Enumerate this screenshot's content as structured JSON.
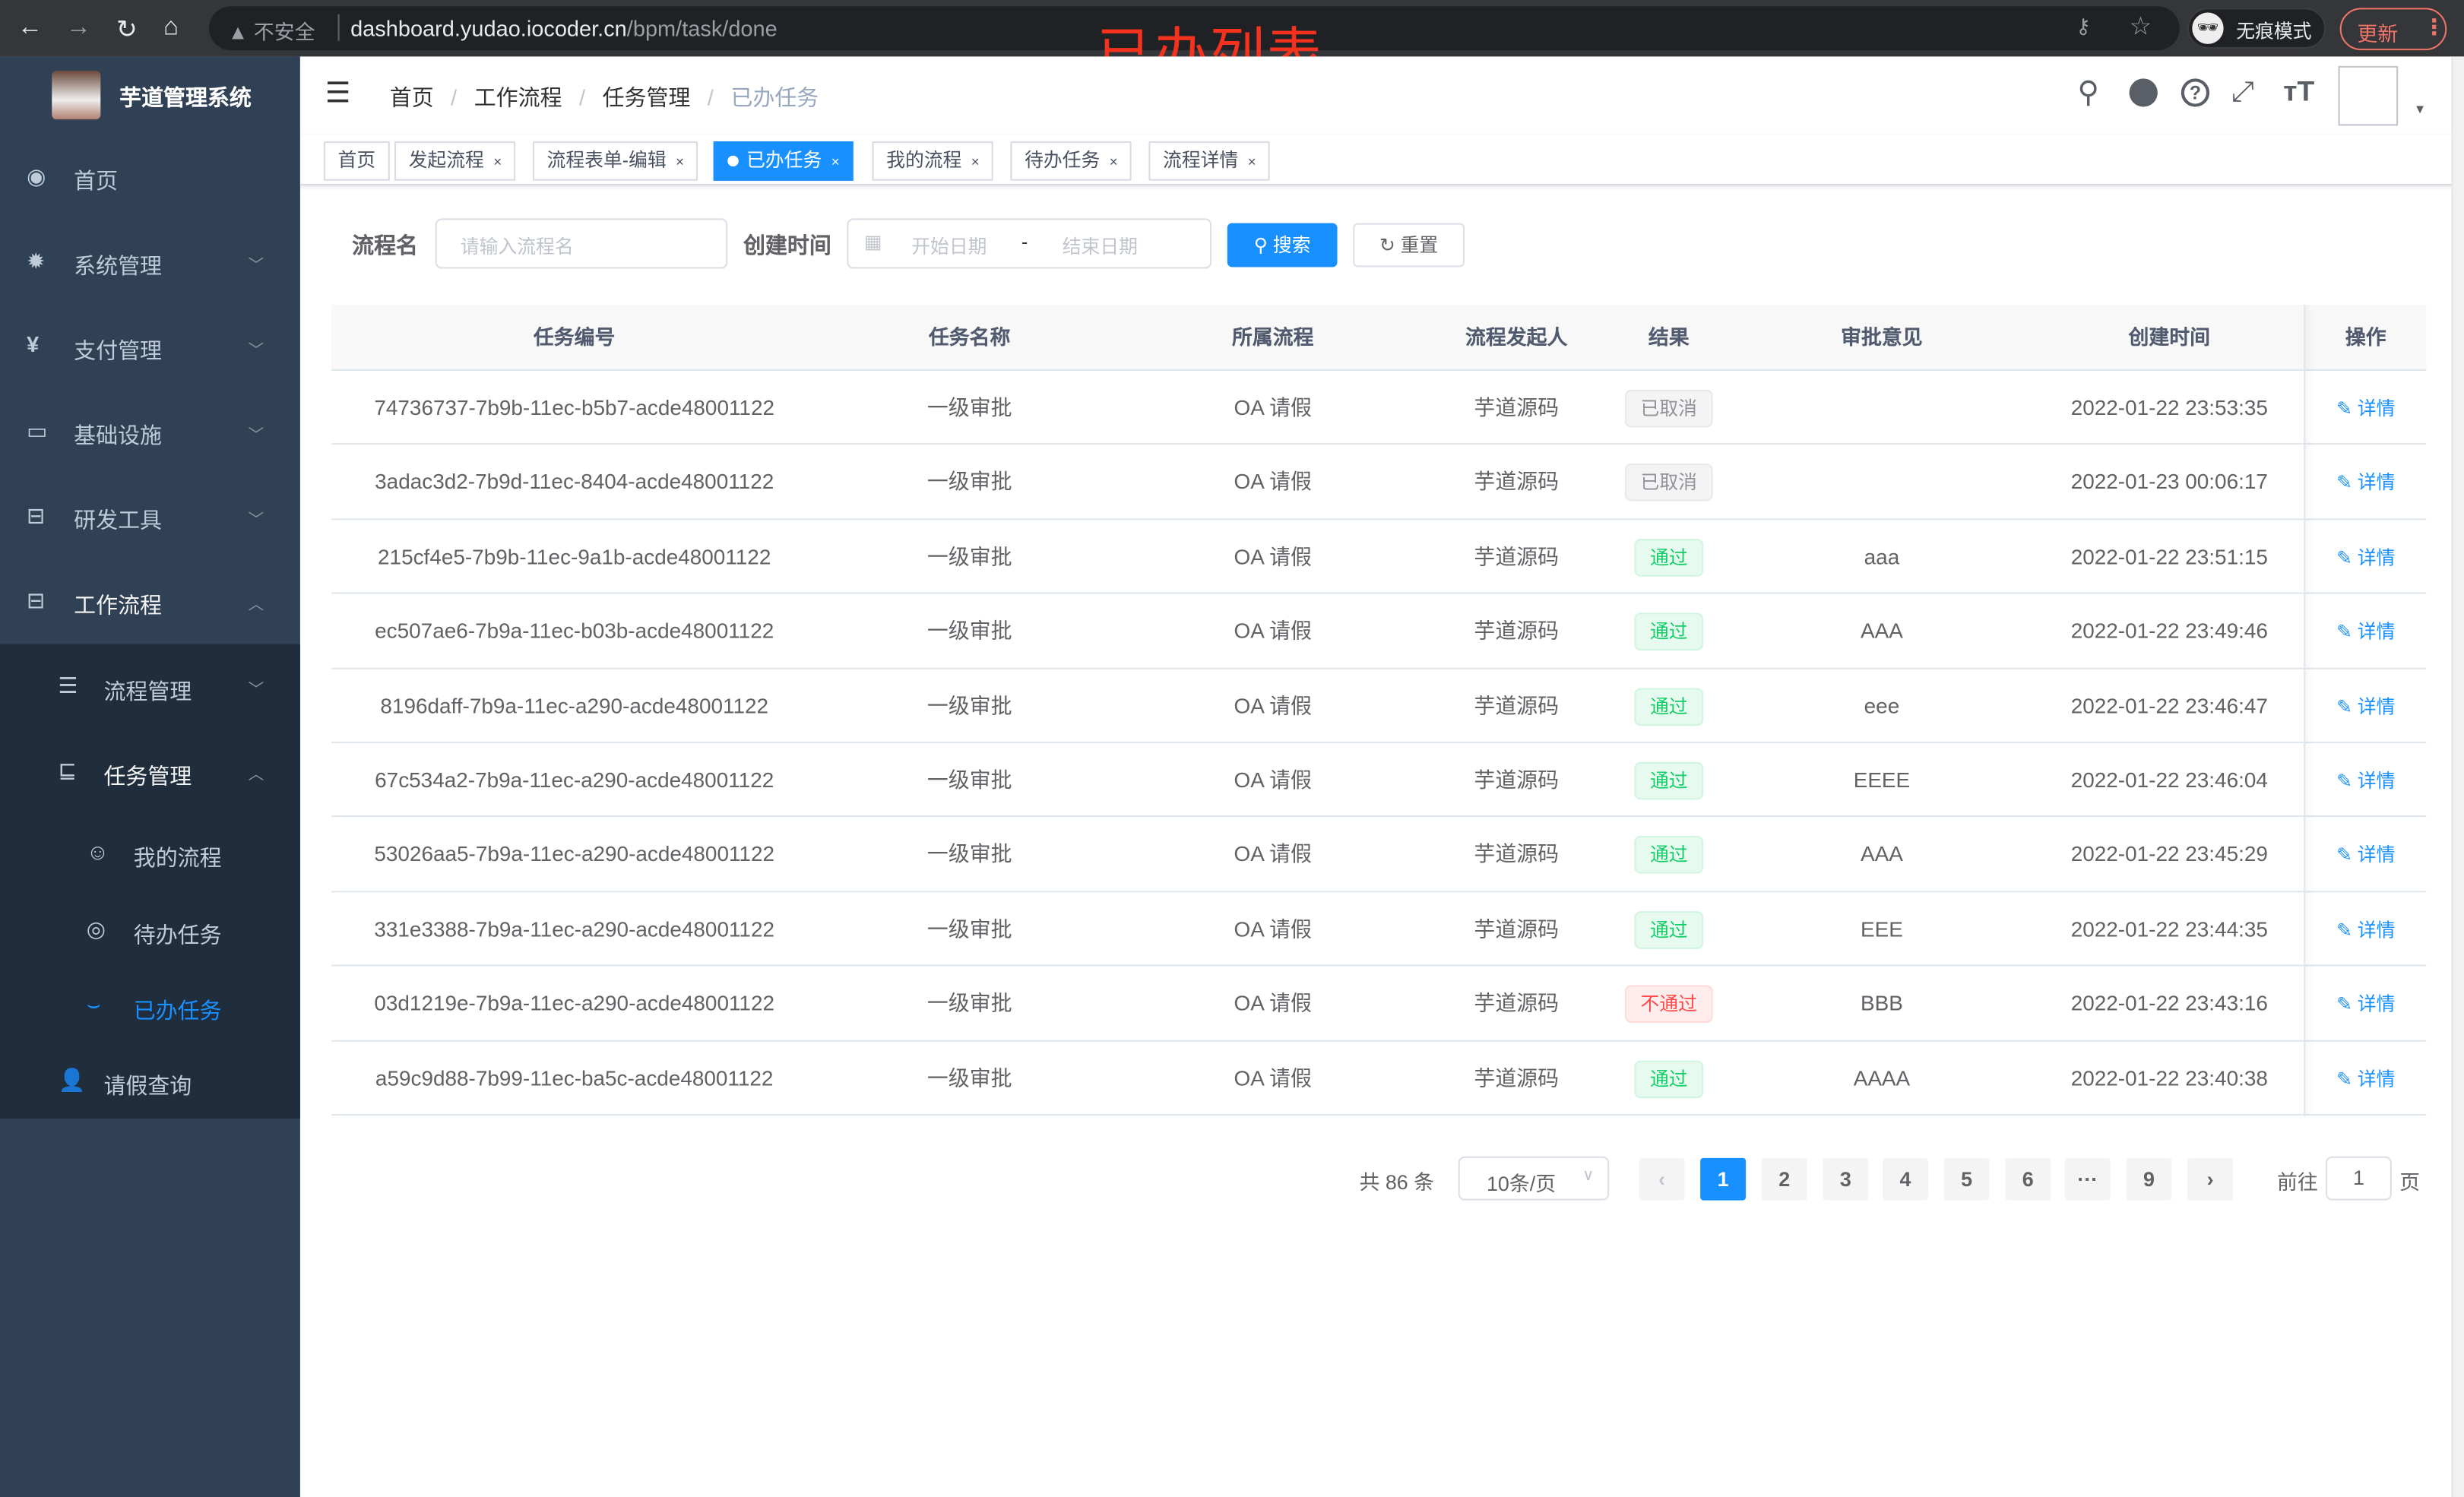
{
  "browser": {
    "security_label": "不安全",
    "url_host": "dashboard.yudao.iocoder.cn",
    "url_path": "/bpm/task/done",
    "incognito_label": "无痕模式",
    "update_label": "更新"
  },
  "annotation": "已办列表",
  "sidebar": {
    "title": "芋道管理系统",
    "items": [
      {
        "label": "首页",
        "icon": "dashboard-icon"
      },
      {
        "label": "系统管理",
        "icon": "gear-icon"
      },
      {
        "label": "支付管理",
        "icon": "yen-icon"
      },
      {
        "label": "基础设施",
        "icon": "monitor-icon"
      },
      {
        "label": "研发工具",
        "icon": "toolbox-icon"
      },
      {
        "label": "工作流程",
        "icon": "toolbox-icon"
      }
    ],
    "sub_items": [
      {
        "label": "流程管理",
        "icon": "list-icon"
      },
      {
        "label": "任务管理",
        "icon": "task-icon"
      },
      {
        "label": "我的流程",
        "icon": "robot-icon"
      },
      {
        "label": "待办任务",
        "icon": "eye-open-icon"
      },
      {
        "label": "已办任务",
        "icon": "eye-closed-icon"
      },
      {
        "label": "请假查询",
        "icon": "user-icon"
      }
    ],
    "active": "已办任务",
    "active_color": "#1890ff"
  },
  "breadcrumb": [
    "首页",
    "工作流程",
    "任务管理",
    "已办任务"
  ],
  "tags": [
    {
      "label": "首页",
      "closable": false
    },
    {
      "label": "发起流程",
      "closable": true
    },
    {
      "label": "流程表单-编辑",
      "closable": true
    },
    {
      "label": "已办任务",
      "closable": true,
      "active": true
    },
    {
      "label": "我的流程",
      "closable": true
    },
    {
      "label": "待办任务",
      "closable": true
    },
    {
      "label": "流程详情",
      "closable": true
    }
  ],
  "filters": {
    "name_label": "流程名",
    "name_placeholder": "请输入流程名",
    "time_label": "创建时间",
    "start_placeholder": "开始日期",
    "range_sep": "-",
    "end_placeholder": "结束日期",
    "search_label": "搜索",
    "reset_label": "重置"
  },
  "table": {
    "columns": [
      "任务编号",
      "任务名称",
      "所属流程",
      "流程发起人",
      "结果",
      "审批意见",
      "创建时间",
      "操作"
    ],
    "action_label": "详情",
    "rows": [
      {
        "id": "74736737-7b9b-11ec-b5b7-acde48001122",
        "name": "一级审批",
        "process": "OA 请假",
        "starter": "芋道源码",
        "result": "已取消",
        "result_type": "cancel",
        "comment": "",
        "time": "2022-01-22 23:53:35"
      },
      {
        "id": "3adac3d2-7b9d-11ec-8404-acde48001122",
        "name": "一级审批",
        "process": "OA 请假",
        "starter": "芋道源码",
        "result": "已取消",
        "result_type": "cancel",
        "comment": "",
        "time": "2022-01-23 00:06:17"
      },
      {
        "id": "215cf4e5-7b9b-11ec-9a1b-acde48001122",
        "name": "一级审批",
        "process": "OA 请假",
        "starter": "芋道源码",
        "result": "通过",
        "result_type": "pass",
        "comment": "aaa",
        "time": "2022-01-22 23:51:15"
      },
      {
        "id": "ec507ae6-7b9a-11ec-b03b-acde48001122",
        "name": "一级审批",
        "process": "OA 请假",
        "starter": "芋道源码",
        "result": "通过",
        "result_type": "pass",
        "comment": "AAA",
        "time": "2022-01-22 23:49:46"
      },
      {
        "id": "8196daff-7b9a-11ec-a290-acde48001122",
        "name": "一级审批",
        "process": "OA 请假",
        "starter": "芋道源码",
        "result": "通过",
        "result_type": "pass",
        "comment": "eee",
        "time": "2022-01-22 23:46:47"
      },
      {
        "id": "67c534a2-7b9a-11ec-a290-acde48001122",
        "name": "一级审批",
        "process": "OA 请假",
        "starter": "芋道源码",
        "result": "通过",
        "result_type": "pass",
        "comment": "EEEE",
        "time": "2022-01-22 23:46:04"
      },
      {
        "id": "53026aa5-7b9a-11ec-a290-acde48001122",
        "name": "一级审批",
        "process": "OA 请假",
        "starter": "芋道源码",
        "result": "通过",
        "result_type": "pass",
        "comment": "AAA",
        "time": "2022-01-22 23:45:29"
      },
      {
        "id": "331e3388-7b9a-11ec-a290-acde48001122",
        "name": "一级审批",
        "process": "OA 请假",
        "starter": "芋道源码",
        "result": "通过",
        "result_type": "pass",
        "comment": "EEE",
        "time": "2022-01-22 23:44:35"
      },
      {
        "id": "03d1219e-7b9a-11ec-a290-acde48001122",
        "name": "一级审批",
        "process": "OA 请假",
        "starter": "芋道源码",
        "result": "不通过",
        "result_type": "reject",
        "comment": "BBB",
        "time": "2022-01-22 23:43:16"
      },
      {
        "id": "a59c9d88-7b99-11ec-ba5c-acde48001122",
        "name": "一级审批",
        "process": "OA 请假",
        "starter": "芋道源码",
        "result": "通过",
        "result_type": "pass",
        "comment": "AAAA",
        "time": "2022-01-22 23:40:38"
      }
    ]
  },
  "pagination": {
    "total_label": "共 86 条",
    "page_size": "10条/页",
    "pages": [
      "1",
      "2",
      "3",
      "4",
      "5",
      "6",
      "···",
      "9"
    ],
    "current": "1",
    "goto_label": "前往",
    "goto_value": "1",
    "page_suffix": "页"
  }
}
